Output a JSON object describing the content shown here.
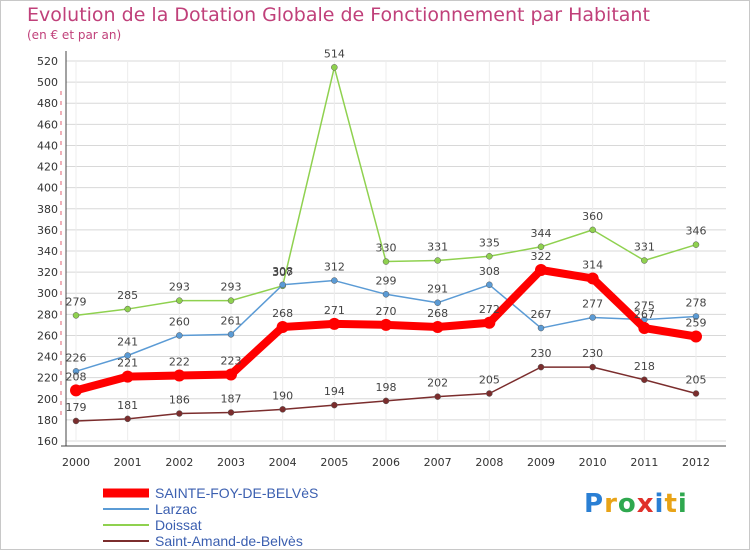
{
  "chart_data": {
    "type": "line",
    "title": "Evolution de la Dotation Globale de Fonctionnement par Habitant",
    "subtitle": "(en € et par an)",
    "xlabel": "",
    "ylabel": "",
    "x": [
      "2000",
      "2001",
      "2002",
      "2003",
      "2004",
      "2005",
      "2006",
      "2007",
      "2008",
      "2009",
      "2010",
      "2011",
      "2012"
    ],
    "ylim": [
      160,
      520
    ],
    "yticks": [
      160,
      180,
      200,
      220,
      240,
      260,
      280,
      300,
      320,
      340,
      360,
      380,
      400,
      420,
      440,
      460,
      480,
      500,
      520
    ],
    "series": [
      {
        "name": "SAINTE-FOY-DE-BELVèS",
        "color": "#ff0000",
        "values": [
          208,
          221,
          222,
          223,
          268,
          271,
          270,
          268,
          272,
          322,
          314,
          267,
          259
        ]
      },
      {
        "name": "Larzac",
        "color": "#5b9bd5",
        "values": [
          226,
          241,
          260,
          261,
          308,
          312,
          299,
          291,
          308,
          267,
          277,
          275,
          278
        ]
      },
      {
        "name": "Doissat",
        "color": "#8fd14f",
        "values": [
          279,
          285,
          293,
          293,
          307,
          514,
          330,
          331,
          335,
          344,
          360,
          331,
          346
        ]
      },
      {
        "name": "Saint-Amand-de-Belvès",
        "color": "#7b2d2d",
        "values": [
          179,
          181,
          186,
          187,
          190,
          194,
          198,
          202,
          205,
          230,
          230,
          218,
          205
        ]
      }
    ],
    "legend_position": "bottom-left"
  },
  "logo": {
    "letters": [
      "P",
      "r",
      "o",
      "x",
      "i",
      "t",
      "i"
    ]
  }
}
